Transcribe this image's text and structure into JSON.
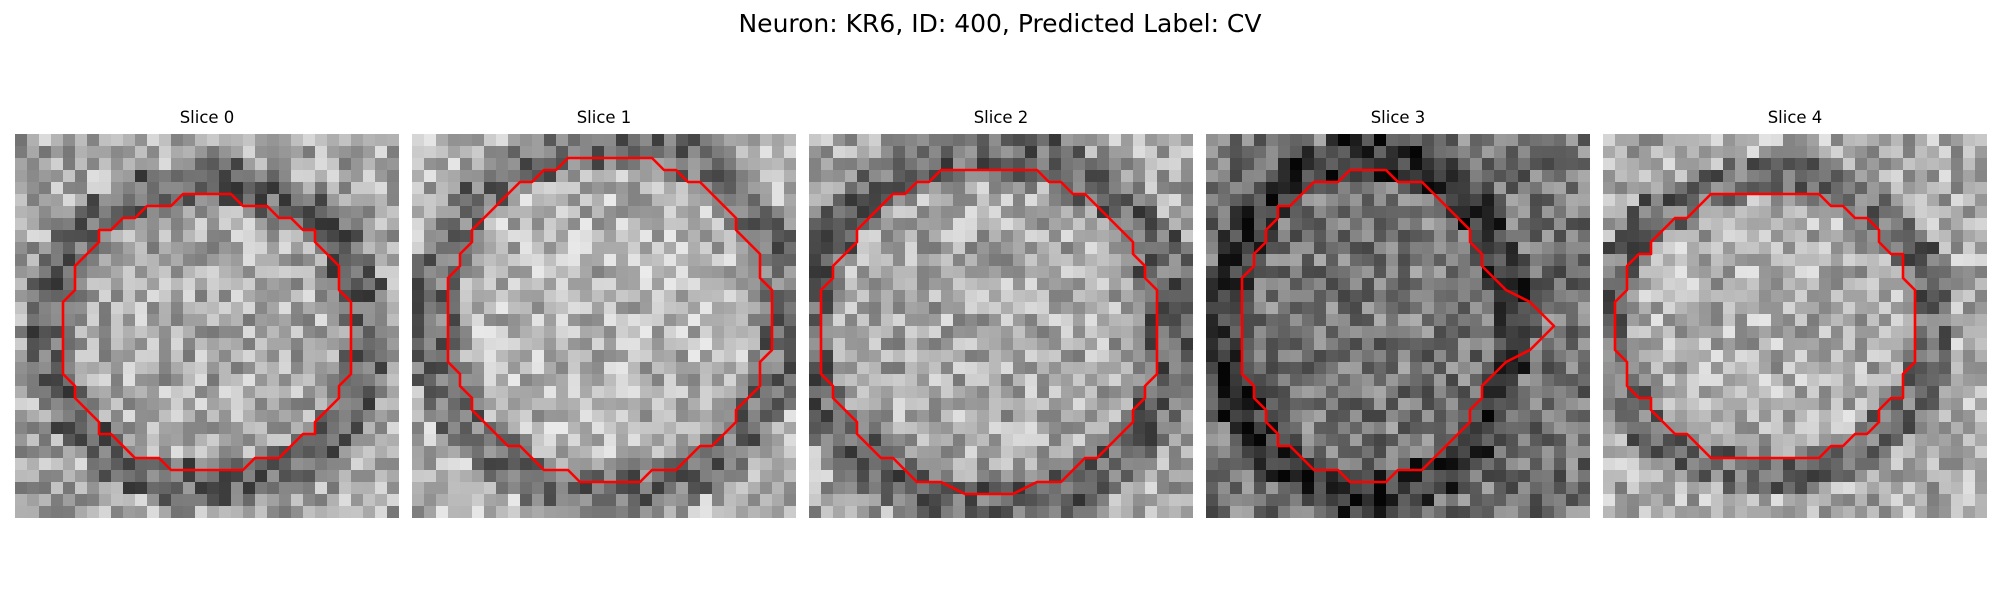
{
  "figure": {
    "title": "Neuron: KR6, ID: 400, Predicted Label: CV"
  },
  "slices": [
    {
      "label": "Slice 0",
      "seed": 11,
      "tone": 0.62,
      "contour": "circle-low"
    },
    {
      "label": "Slice 1",
      "seed": 23,
      "tone": 0.66,
      "contour": "circle-large"
    },
    {
      "label": "Slice 2",
      "seed": 37,
      "tone": 0.62,
      "contour": "circle-mid"
    },
    {
      "label": "Slice 3",
      "seed": 51,
      "tone": 0.42,
      "contour": "blob-lobe"
    },
    {
      "label": "Slice 4",
      "seed": 67,
      "tone": 0.64,
      "contour": "circle-tilt"
    }
  ],
  "colors": {
    "contour": "#ff0000",
    "background": "#ffffff"
  }
}
